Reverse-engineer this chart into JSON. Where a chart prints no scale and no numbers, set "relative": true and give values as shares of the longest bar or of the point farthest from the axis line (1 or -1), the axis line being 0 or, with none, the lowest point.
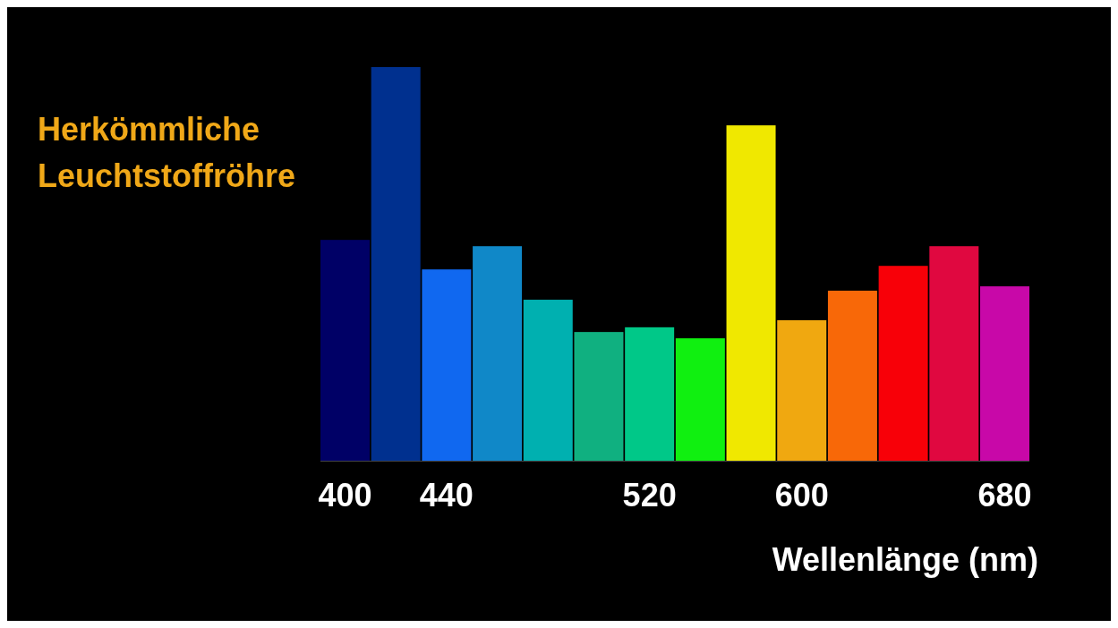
{
  "chart_data": {
    "type": "bar",
    "title": "Herkömmliche\nLeuchtstoffröhre",
    "xlabel": "Wellenlänge (nm)",
    "relative": true,
    "categories": [
      "400",
      null,
      "440",
      null,
      null,
      null,
      "520",
      null,
      null,
      "600",
      null,
      null,
      null,
      "680"
    ],
    "values": [
      0.561,
      1,
      0.486,
      0.545,
      0.409,
      0.327,
      0.339,
      0.311,
      0.852,
      0.357,
      0.432,
      0.495,
      0.545,
      0.443
    ],
    "colors": [
      "#000066",
      "#00308f",
      "#1068f0",
      "#1088c8",
      "#00b0b0",
      "#10b080",
      "#00c888",
      "#10f010",
      "#f0e800",
      "#f0a810",
      "#f86808",
      "#f80008",
      "#e00840",
      "#c808a8"
    ]
  }
}
